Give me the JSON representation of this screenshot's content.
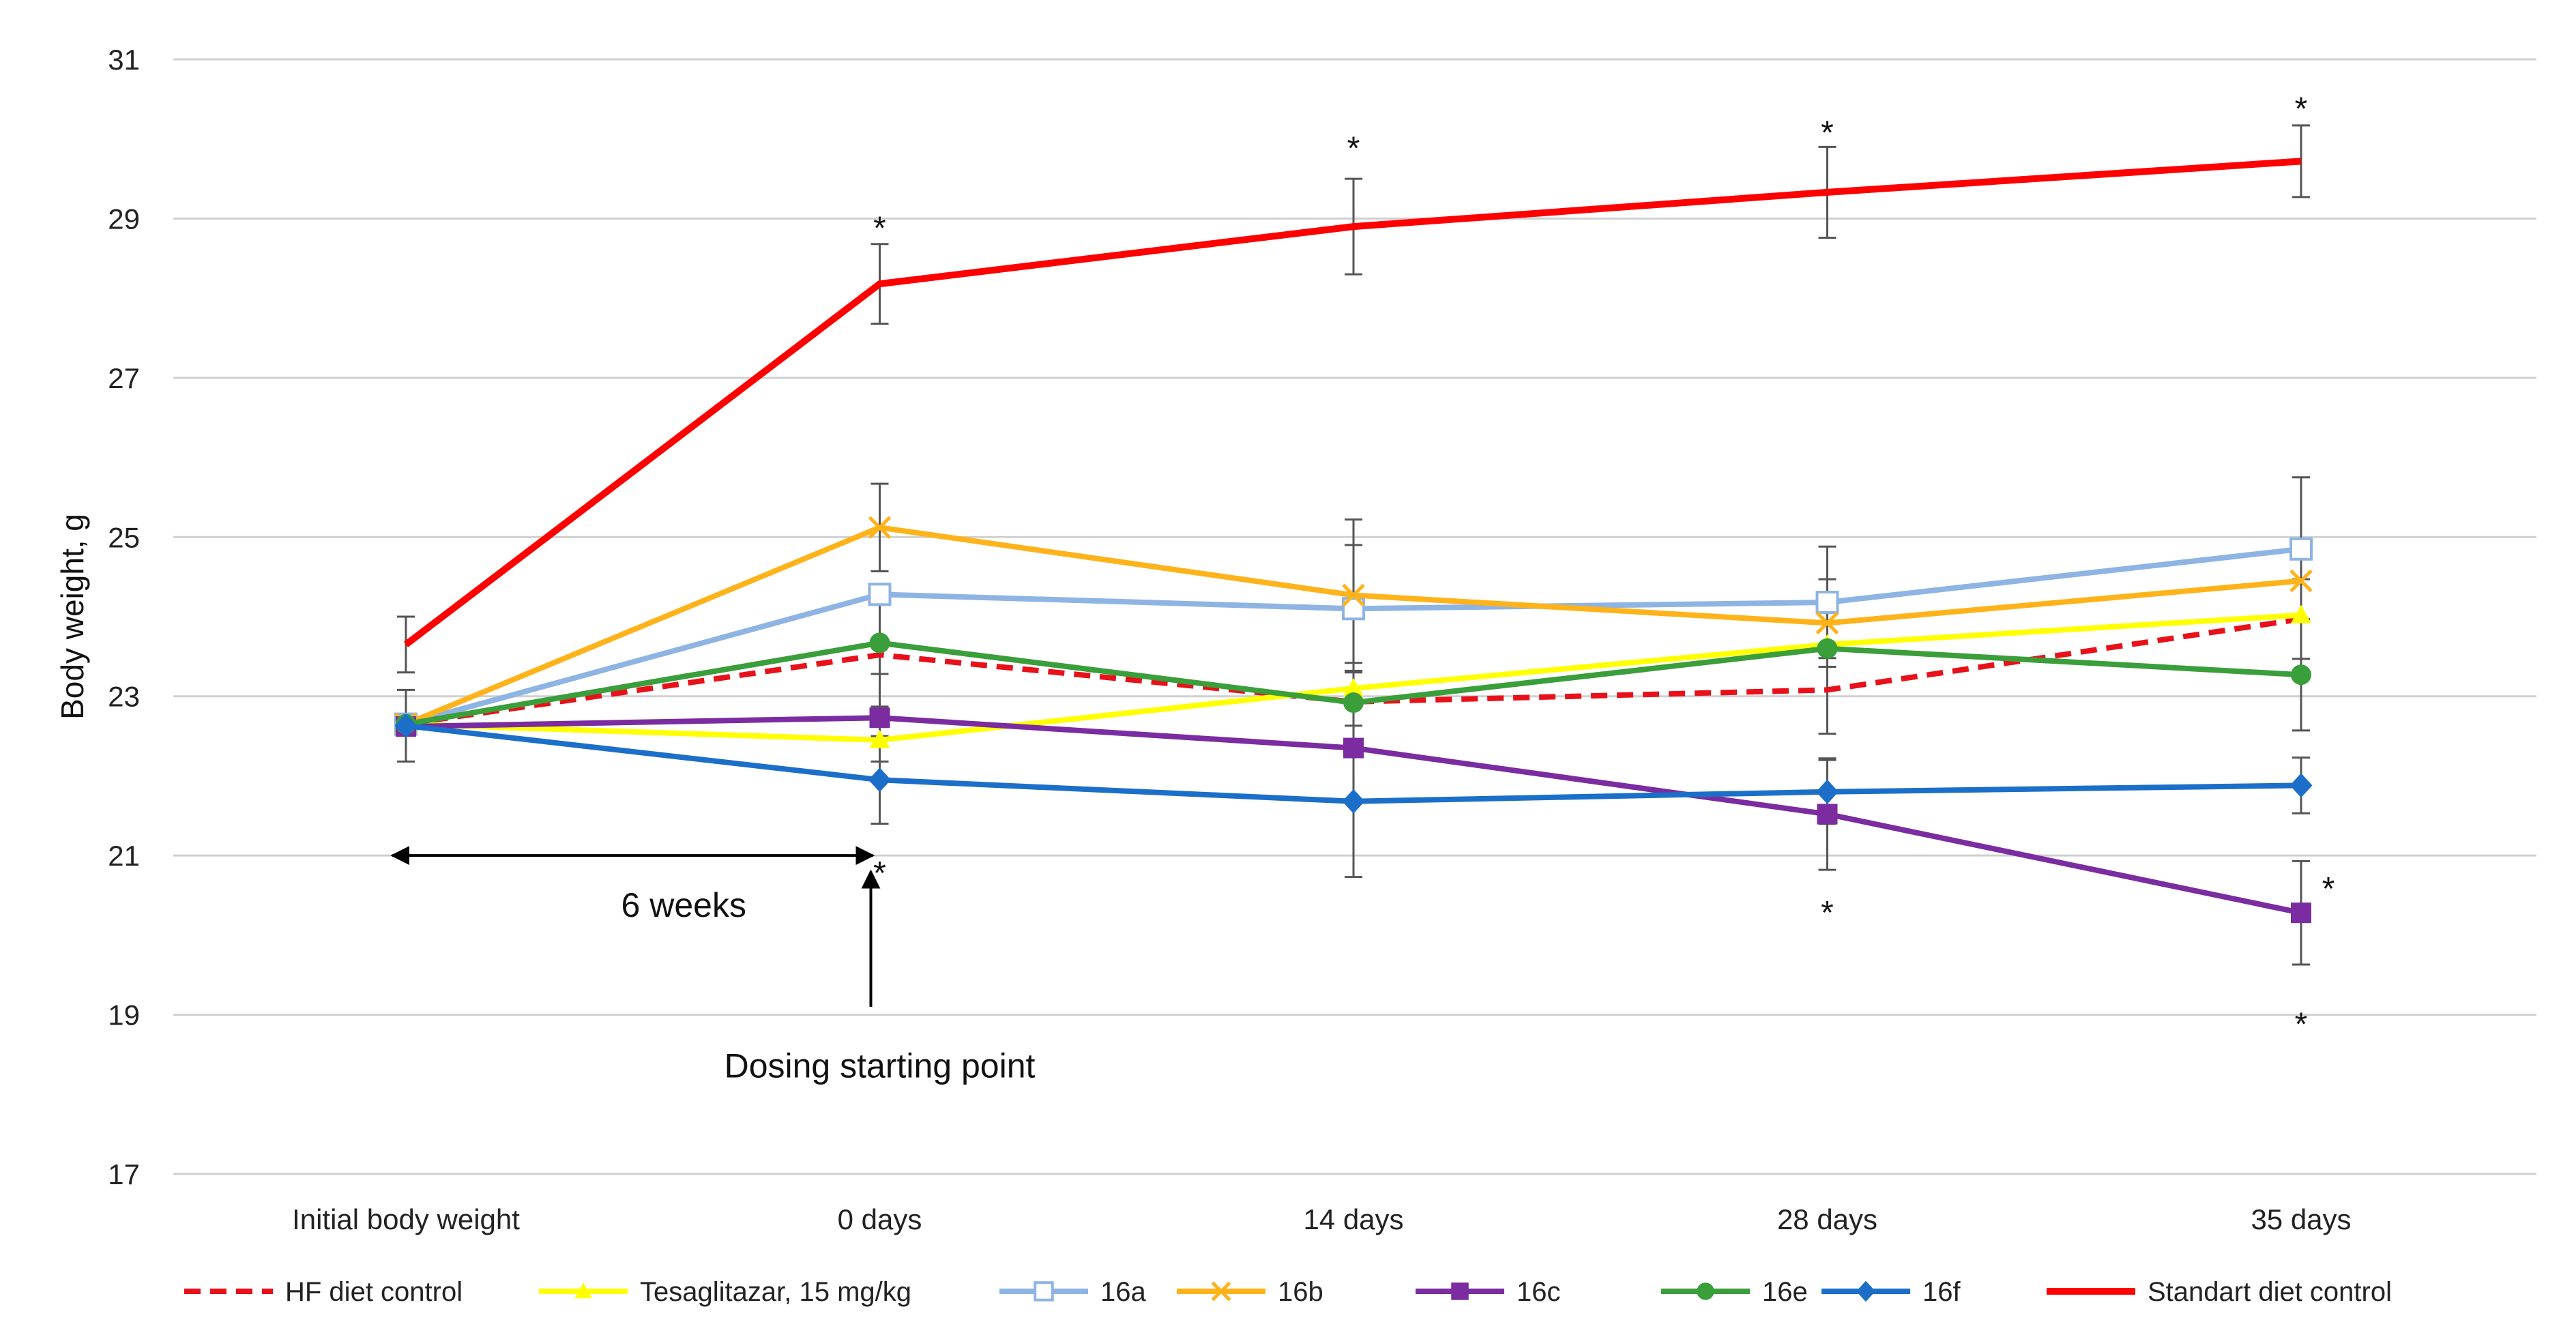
{
  "chart_data": {
    "type": "line",
    "title": "",
    "xlabel": "",
    "ylabel": "Body weight, g",
    "categories": [
      "Initial body weight",
      "0 days",
      "14 days",
      "28 days",
      "35 days"
    ],
    "ylim": [
      17,
      31
    ],
    "yticks": [
      17,
      19,
      21,
      23,
      25,
      27,
      29,
      31
    ],
    "grid": "horizontal",
    "legend_position": "bottom",
    "series": [
      {
        "name": "HF diet control",
        "color": "#e8111a",
        "dash": true,
        "marker": "none",
        "values": [
          22.65,
          23.52,
          22.93,
          23.08,
          23.97
        ],
        "errors": [
          0,
          0.65,
          0,
          0.55,
          0.5
        ]
      },
      {
        "name": "Tesaglitazar, 15 mg/kg",
        "color": "#ffff00",
        "dash": false,
        "marker": "triangle",
        "values": [
          22.65,
          22.45,
          23.1,
          23.65,
          24.02
        ],
        "errors": [
          0,
          0,
          0,
          0,
          0
        ]
      },
      {
        "name": "16a",
        "color": "#8eb4e3",
        "dash": false,
        "marker": "open-square",
        "values": [
          22.65,
          24.28,
          24.1,
          24.18,
          24.85
        ],
        "errors": [
          0,
          0,
          0.8,
          0.7,
          0.9
        ]
      },
      {
        "name": "16b",
        "color": "#ffb31a",
        "dash": false,
        "marker": "x",
        "values": [
          22.65,
          25.12,
          24.27,
          23.92,
          24.45
        ],
        "errors": [
          0,
          0.55,
          0.95,
          0.55,
          0.5
        ]
      },
      {
        "name": "16c",
        "color": "#7a2ca0",
        "dash": false,
        "marker": "square",
        "values": [
          22.62,
          22.73,
          22.35,
          21.52,
          20.28
        ],
        "errors": [
          0,
          0.55,
          0,
          0.7,
          0.65
        ]
      },
      {
        "name": "16e",
        "color": "#3a9e3a",
        "dash": false,
        "marker": "circle",
        "values": [
          22.65,
          23.67,
          22.92,
          23.6,
          23.27
        ],
        "errors": [
          0,
          0,
          0.5,
          0,
          0.7
        ]
      },
      {
        "name": "16f",
        "color": "#1b6fc8",
        "dash": false,
        "marker": "diamond",
        "values": [
          22.63,
          21.95,
          21.68,
          21.8,
          21.88
        ],
        "errors": [
          0.45,
          0.55,
          0.95,
          0.4,
          0.35
        ]
      },
      {
        "name": "Standart diet control",
        "color": "#ff0000",
        "dash": false,
        "marker": "none",
        "values": [
          23.65,
          28.18,
          28.9,
          29.33,
          29.72
        ],
        "errors": [
          0.35,
          0.5,
          0.6,
          0.57,
          0.45
        ]
      }
    ],
    "significance_marks": [
      {
        "category": "0 days",
        "y": 29.0,
        "label": "*"
      },
      {
        "category": "14 days",
        "y": 30.0,
        "label": "*"
      },
      {
        "category": "28 days",
        "y": 30.2,
        "label": "*"
      },
      {
        "category": "35 days",
        "y": 30.5,
        "label": "*"
      },
      {
        "category": "0 days",
        "y": 20.9,
        "label": "*"
      },
      {
        "category": "28 days",
        "y": 20.4,
        "label": "*"
      },
      {
        "category": "35 days",
        "y": 20.7,
        "label": "*",
        "offset": "right"
      },
      {
        "category": "35 days",
        "y": 19.0,
        "label": "*"
      }
    ],
    "annotations": {
      "period_label": "6 weeks",
      "dosing_label": "Dosing starting point"
    }
  }
}
